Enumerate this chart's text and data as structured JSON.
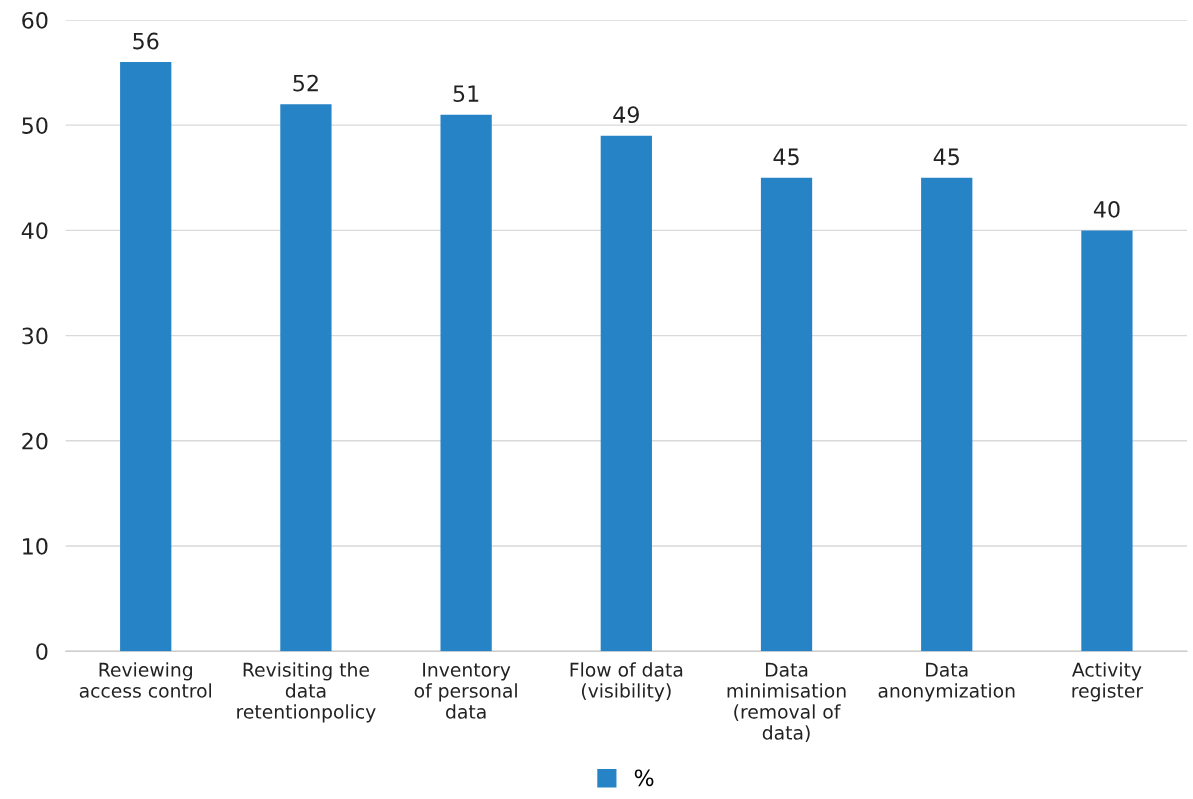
{
  "chart_data": {
    "type": "bar",
    "categories": [
      "Reviewing\naccess control",
      "Revisiting the\ndata\nretentionpolicy",
      "Inventory\nof personal\ndata",
      "Flow of data\n(visibility)",
      "Data\nminimisation\n(removal of\ndata)",
      "Data\nanonymization",
      "Activity\nregister"
    ],
    "series": [
      {
        "name": "%",
        "color": "#2683c6",
        "values": [
          56,
          52,
          51,
          49,
          45,
          45,
          40
        ]
      }
    ],
    "ylim": [
      0,
      60
    ],
    "yticks": [
      0,
      10,
      20,
      30,
      40,
      50,
      60
    ],
    "grid": "y",
    "legend": "bottom",
    "data_labels": true
  }
}
